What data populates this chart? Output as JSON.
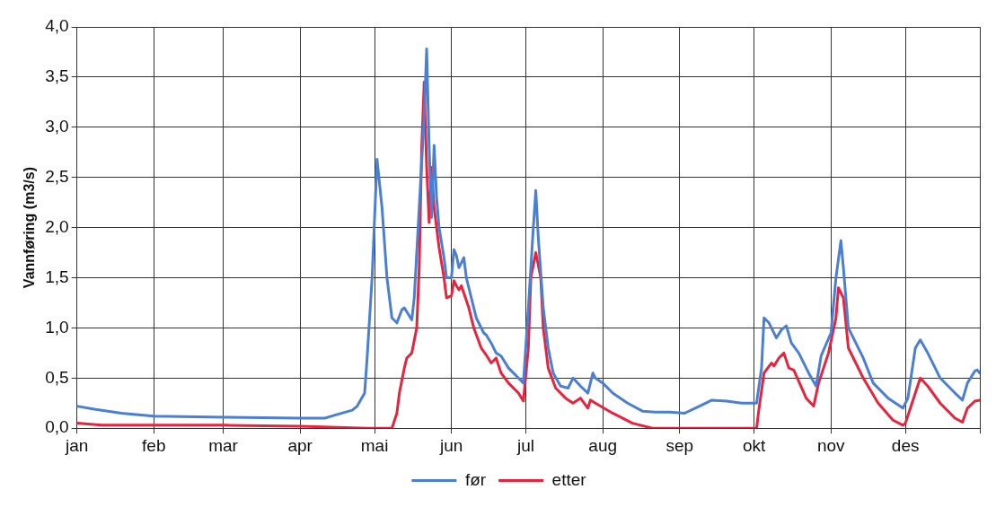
{
  "chart_data": {
    "type": "line",
    "ylabel": "Vannføring (m3/s)",
    "xlim": [
      "--01-01",
      "--12-31"
    ],
    "xticks": [
      {
        "value": "--01-01",
        "label": "jan"
      },
      {
        "value": "--02-01",
        "label": "feb"
      },
      {
        "value": "--03-01",
        "label": "mar"
      },
      {
        "value": "--04-01",
        "label": "apr"
      },
      {
        "value": "--05-01",
        "label": "mai"
      },
      {
        "value": "--06-01",
        "label": "jun"
      },
      {
        "value": "--07-01",
        "label": "jul"
      },
      {
        "value": "--08-01",
        "label": "aug"
      },
      {
        "value": "--09-01",
        "label": "sep"
      },
      {
        "value": "--10-01",
        "label": "okt"
      },
      {
        "value": "--11-01",
        "label": "nov"
      },
      {
        "value": "--12-01",
        "label": "des"
      },
      {
        "value": "--12-31",
        "label": null
      }
    ],
    "ylim": [
      0,
      4
    ],
    "yticks": [
      {
        "value": 0,
        "label": "0,0"
      },
      {
        "value": 0.5,
        "label": "0,5"
      },
      {
        "value": 1,
        "label": "1,0"
      },
      {
        "value": 1.5,
        "label": "1,5"
      },
      {
        "value": 2,
        "label": "2,0"
      },
      {
        "value": 2.5,
        "label": "2,5"
      },
      {
        "value": 3,
        "label": "3,0"
      },
      {
        "value": 3.5,
        "label": "3,5"
      },
      {
        "value": 4,
        "label": "4,0"
      }
    ],
    "grid": true,
    "legend": "bottom",
    "marker": "none",
    "line_style": "solid",
    "series": [
      {
        "name": "før",
        "color": "#4a7fd4",
        "x": [
          "--01-01",
          "--01-08",
          "--01-19",
          "--02-01",
          "--03-02",
          "--04-01",
          "--04-11",
          "--04-15",
          "--04-22",
          "--04-24",
          "--04-27",
          "--04-28",
          "--04-30",
          "--05-02",
          "--05-04",
          "--05-06",
          "--05-08",
          "--05-10",
          "--05-12",
          "--05-13",
          "--05-16",
          "--05-17",
          "--05-19",
          "--05-21",
          "--05-22",
          "--05-23",
          "--05-24",
          "--05-25",
          "--05-26",
          "--05-27",
          "--05-29",
          "--05-30",
          "--06-01",
          "--06-02",
          "--06-03",
          "--06-04",
          "--06-06",
          "--06-07",
          "--06-09",
          "--06-11",
          "--06-14",
          "--06-15",
          "--06-17",
          "--06-19",
          "--06-21",
          "--06-24",
          "--06-28",
          "--06-30",
          "--07-02",
          "--07-04",
          "--07-05",
          "--07-06",
          "--07-08",
          "--07-10",
          "--07-12",
          "--07-15",
          "--07-18",
          "--07-20",
          "--07-23",
          "--07-26",
          "--07-28",
          "--07-29",
          "--08-01",
          "--08-05",
          "--08-11",
          "--08-17",
          "--08-22",
          "--08-28",
          "--09-03",
          "--09-09",
          "--09-14",
          "--09-20",
          "--09-26",
          "--10-02",
          "--10-04",
          "--10-05",
          "--10-07",
          "--10-10",
          "--10-12",
          "--10-14",
          "--10-16",
          "--10-19",
          "--10-23",
          "--10-26",
          "--10-28",
          "--11-01",
          "--11-03",
          "--11-05",
          "--11-06",
          "--11-08",
          "--11-11",
          "--11-14",
          "--11-18",
          "--11-24",
          "--11-30",
          "--12-02",
          "--12-05",
          "--12-07",
          "--12-10",
          "--12-15",
          "--12-21",
          "--12-24",
          "--12-26",
          "--12-29",
          "--12-30",
          "--12-31"
        ],
        "values": [
          0.22,
          0.19,
          0.15,
          0.12,
          0.11,
          0.1,
          0.1,
          0.13,
          0.18,
          0.22,
          0.35,
          0.7,
          1.5,
          2.68,
          2.2,
          1.5,
          1.1,
          1.05,
          1.18,
          1.2,
          1.08,
          1.3,
          2.2,
          3.1,
          3.78,
          2.8,
          2.1,
          2.82,
          2.3,
          2.0,
          1.7,
          1.5,
          1.5,
          1.78,
          1.72,
          1.6,
          1.7,
          1.5,
          1.3,
          1.1,
          0.95,
          0.93,
          0.85,
          0.75,
          0.72,
          0.6,
          0.5,
          0.45,
          1.2,
          2.0,
          2.37,
          1.9,
          1.2,
          0.8,
          0.55,
          0.42,
          0.4,
          0.5,
          0.42,
          0.35,
          0.55,
          0.5,
          0.45,
          0.35,
          0.25,
          0.17,
          0.16,
          0.16,
          0.15,
          0.22,
          0.28,
          0.27,
          0.25,
          0.25,
          0.6,
          1.1,
          1.05,
          0.9,
          0.98,
          1.02,
          0.85,
          0.75,
          0.55,
          0.42,
          0.72,
          0.95,
          1.5,
          1.87,
          1.6,
          1.0,
          0.85,
          0.7,
          0.45,
          0.3,
          0.2,
          0.3,
          0.8,
          0.88,
          0.75,
          0.5,
          0.35,
          0.28,
          0.45,
          0.57,
          0.58,
          0.55
        ]
      },
      {
        "name": "etter",
        "color": "#e8243c",
        "x": [
          "--01-01",
          "--01-11",
          "--02-01",
          "--03-02",
          "--04-01",
          "--04-28",
          "--05-08",
          "--05-10",
          "--05-11",
          "--05-13",
          "--05-14",
          "--05-16",
          "--05-18",
          "--05-19",
          "--05-20",
          "--05-21",
          "--05-22",
          "--05-23",
          "--05-24",
          "--05-25",
          "--05-27",
          "--05-29",
          "--05-30",
          "--06-01",
          "--06-02",
          "--06-03",
          "--06-04",
          "--06-05",
          "--06-08",
          "--06-10",
          "--06-13",
          "--06-15",
          "--06-17",
          "--06-19",
          "--06-21",
          "--06-24",
          "--06-28",
          "--06-30",
          "--07-02",
          "--07-03",
          "--07-05",
          "--07-07",
          "--07-08",
          "--07-10",
          "--07-13",
          "--07-17",
          "--07-20",
          "--07-23",
          "--07-26",
          "--07-27",
          "--07-29",
          "--08-05",
          "--08-13",
          "--08-21",
          "--09-05",
          "--09-12",
          "--09-18",
          "--09-24",
          "--10-02",
          "--10-03",
          "--10-05",
          "--10-08",
          "--10-09",
          "--10-11",
          "--10-13",
          "--10-15",
          "--10-17",
          "--10-22",
          "--10-25",
          "--10-27",
          "--10-31",
          "--11-03",
          "--11-04",
          "--11-06",
          "--11-08",
          "--11-11",
          "--11-14",
          "--11-20",
          "--11-26",
          "--11-30",
          "--12-01",
          "--12-05",
          "--12-07",
          "--12-10",
          "--12-15",
          "--12-21",
          "--12-24",
          "--12-26",
          "--12-29",
          "--12-31"
        ],
        "values": [
          0.05,
          0.03,
          0.03,
          0.03,
          0.02,
          0.0,
          0.0,
          0.15,
          0.35,
          0.6,
          0.7,
          0.75,
          1.0,
          1.6,
          2.8,
          3.45,
          2.6,
          2.05,
          2.6,
          2.2,
          1.8,
          1.5,
          1.3,
          1.32,
          1.47,
          1.42,
          1.38,
          1.42,
          1.2,
          1.0,
          0.8,
          0.73,
          0.65,
          0.7,
          0.55,
          0.45,
          0.35,
          0.27,
          0.8,
          1.5,
          1.75,
          1.5,
          1.0,
          0.6,
          0.4,
          0.3,
          0.25,
          0.3,
          0.2,
          0.28,
          0.25,
          0.15,
          0.05,
          0.0,
          0.0,
          0.0,
          0.0,
          0.0,
          0.0,
          0.2,
          0.55,
          0.65,
          0.62,
          0.7,
          0.75,
          0.6,
          0.58,
          0.3,
          0.22,
          0.45,
          0.75,
          1.1,
          1.4,
          1.3,
          0.8,
          0.65,
          0.5,
          0.25,
          0.08,
          0.03,
          0.05,
          0.35,
          0.5,
          0.42,
          0.25,
          0.1,
          0.06,
          0.2,
          0.27,
          0.28
        ]
      }
    ]
  }
}
